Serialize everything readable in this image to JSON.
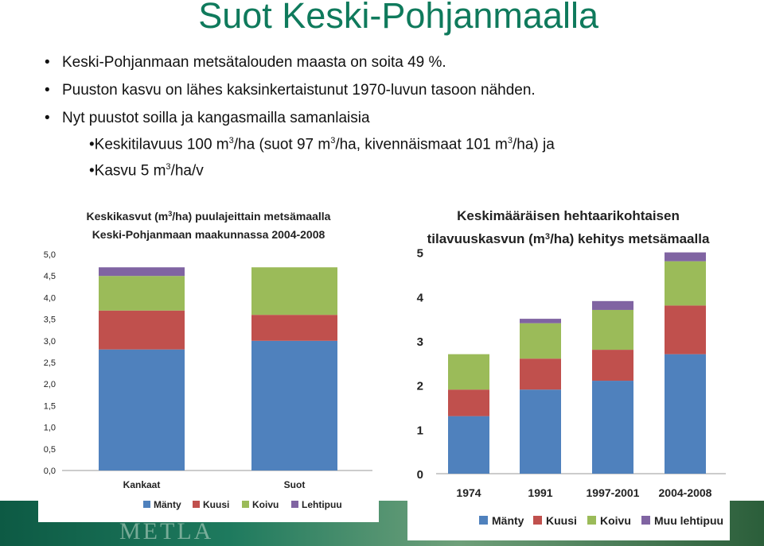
{
  "slide": {
    "title": "Suot Keski-Pohjanmaalla",
    "bullets": [
      "Keski-Pohjanmaan metsätalouden maasta on soita 49 %.",
      "Puuston kasvu on lähes kaksinkertaistunut  1970-luvun tasoon nähden.",
      "Nyt puustot soilla ja kangasmailla samanlaisia"
    ],
    "sub_bullets": [
      {
        "pre": "Keskitilavuus  100 m",
        "mid1": "/ha (suot 97 m",
        "mid2": "/ha, kivennäismaat 101 m",
        "post": "/ha) ja",
        "sup": "3"
      },
      {
        "pre": "Kasvu 5 m",
        "post": "/ha/v",
        "sup": "3"
      }
    ],
    "footer_logo": "METLA"
  },
  "chart_data": [
    {
      "type": "bar",
      "stacked": true,
      "title_line1": "Keskikasvut (m",
      "title_sup": "3",
      "title_line1_end": "/ha) puulajeittain metsämaalla",
      "title_line2": "Keski-Pohjanmaan maakunnassa 2004-2008",
      "categories": [
        "Kankaat",
        "Suot"
      ],
      "series": [
        {
          "name": "Mänty",
          "color": "#4f81bd",
          "values": [
            2.8,
            3.0
          ]
        },
        {
          "name": "Kuusi",
          "color": "#c0504d",
          "values": [
            0.9,
            0.6
          ]
        },
        {
          "name": "Koivu",
          "color": "#9bbb59",
          "values": [
            0.8,
            1.1
          ]
        },
        {
          "name": "Lehtipuu",
          "color": "#8064a2",
          "values": [
            0.2,
            0.0
          ]
        }
      ],
      "ylim": [
        0,
        5
      ],
      "yticks": [
        "0,0",
        "0,5",
        "1,0",
        "1,5",
        "2,0",
        "2,5",
        "3,0",
        "3,5",
        "4,0",
        "4,5",
        "5,0"
      ],
      "grid": false,
      "legend_position": "bottom"
    },
    {
      "type": "bar",
      "stacked": true,
      "title_line1": "Keskimääräisen hehtaarikohtaisen",
      "title_line2_pre": "tilavuuskasvun (m",
      "title_sup": "3",
      "title_line2_post": "/ha) kehitys metsämaalla",
      "categories": [
        "1974",
        "1991",
        "1997-2001",
        "2004-2008"
      ],
      "series": [
        {
          "name": "Mänty",
          "color": "#4f81bd",
          "values": [
            1.3,
            1.9,
            2.1,
            2.7
          ]
        },
        {
          "name": "Kuusi",
          "color": "#c0504d",
          "values": [
            0.6,
            0.7,
            0.7,
            1.1
          ]
        },
        {
          "name": "Koivu",
          "color": "#9bbb59",
          "values": [
            0.8,
            0.8,
            0.9,
            1.0
          ]
        },
        {
          "name": "Muu lehtipuu",
          "color": "#8064a2",
          "values": [
            0.0,
            0.1,
            0.2,
            0.2
          ]
        }
      ],
      "ylim": [
        0,
        5
      ],
      "yticks": [
        "0",
        "1",
        "2",
        "3",
        "4",
        "5"
      ],
      "grid": false,
      "legend_position": "bottom"
    }
  ]
}
